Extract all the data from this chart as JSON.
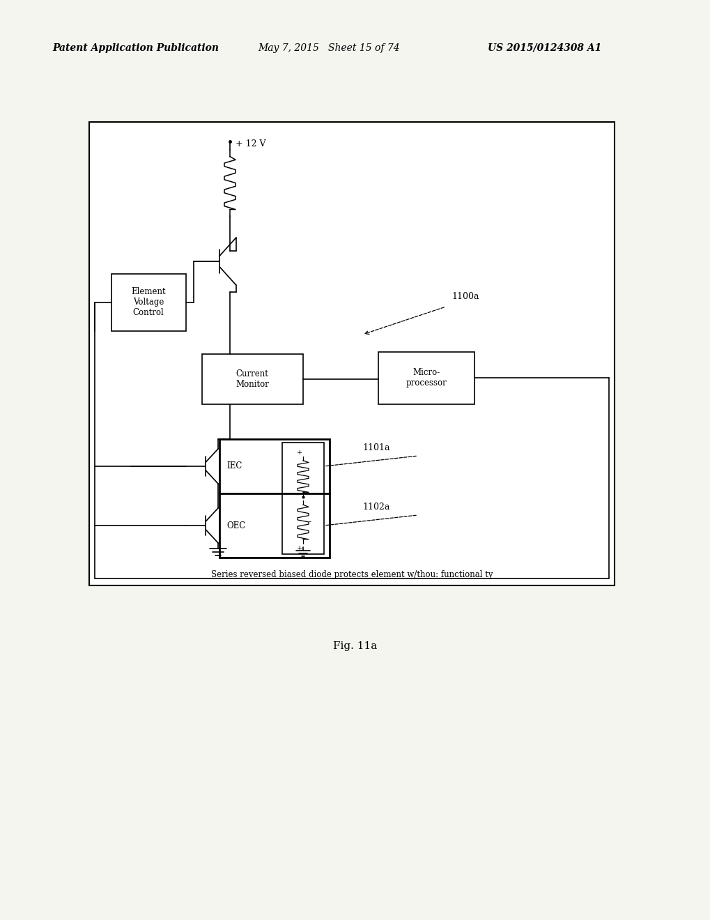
{
  "title": "Fig. 11a",
  "header_left": "Patent Application Publication",
  "header_mid": "May 7, 2015   Sheet 15 of 74",
  "header_right": "US 2015/0124308 A1",
  "caption": "Series reversed biased diode protects element w/thou: functional ty",
  "bg_color": "#f5f5f0",
  "border_color": "#000000",
  "text_color": "#000000",
  "diagram": {
    "label_1100a": "1100a",
    "label_1101a": "1101a",
    "label_1102a": "1102a",
    "label_plus12v": "+ 12 V",
    "label_evc": "Element\nVoltage\nControl",
    "label_cm": "Current\nMonitor",
    "label_mp": "Micro-\nprocessor",
    "label_iec": "IEC",
    "label_oec": "OEC"
  }
}
